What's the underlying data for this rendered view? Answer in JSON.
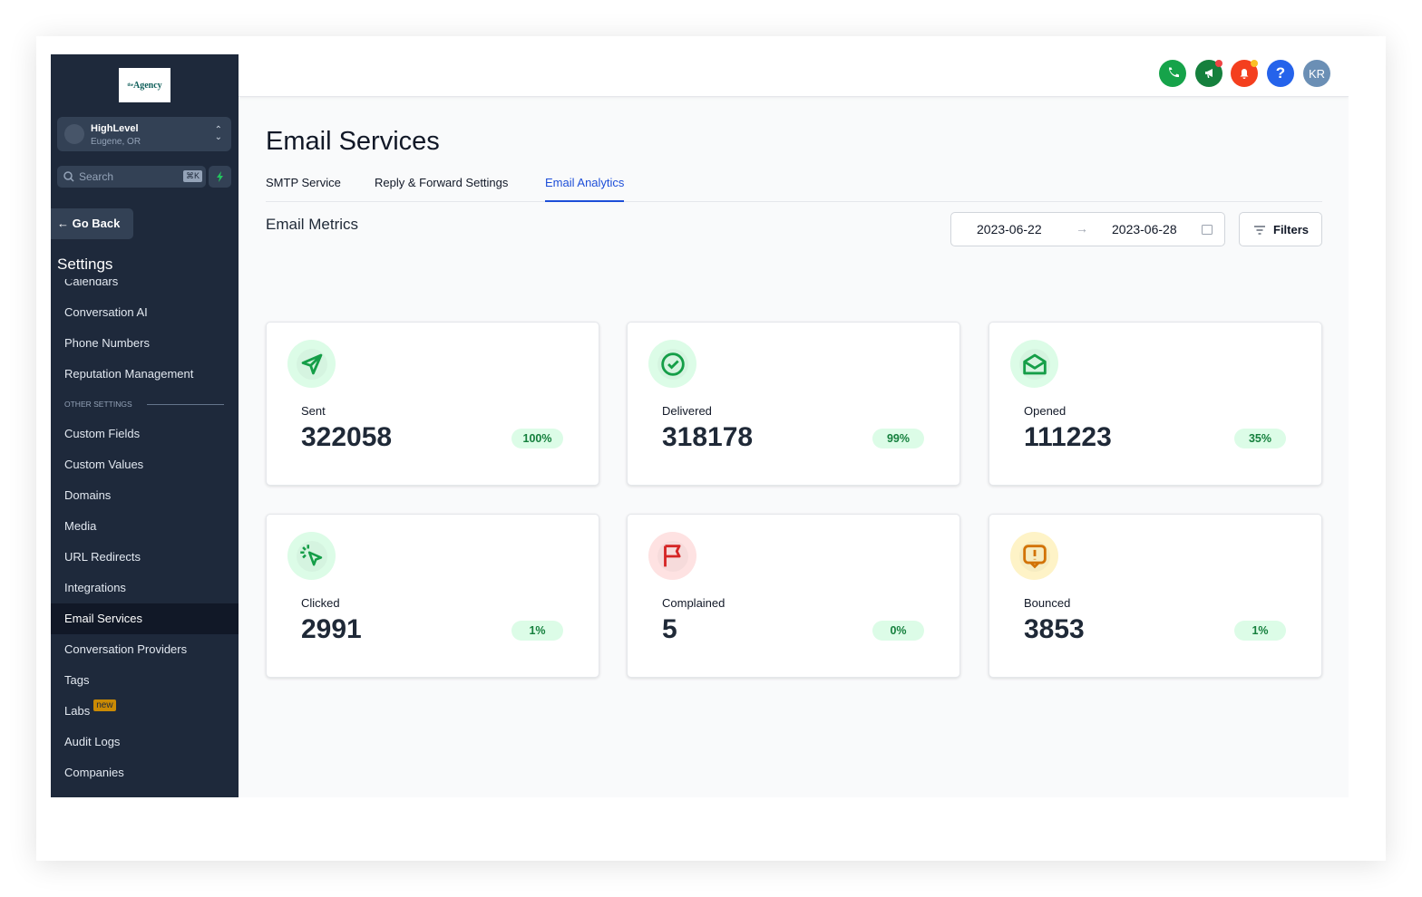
{
  "sidebar": {
    "logo": {
      "prefix": "the",
      "name": "Agency"
    },
    "account": {
      "name": "HighLevel",
      "location": "Eugene, OR"
    },
    "search": {
      "placeholder": "Search",
      "shortcut": "⌘K"
    },
    "go_back": "Go Back",
    "title": "Settings",
    "items": [
      {
        "label": "Calendars"
      },
      {
        "label": "Conversation AI"
      },
      {
        "label": "Phone Numbers"
      },
      {
        "label": "Reputation Management"
      },
      {
        "section": "OTHER SETTINGS"
      },
      {
        "label": "Custom Fields"
      },
      {
        "label": "Custom Values"
      },
      {
        "label": "Domains"
      },
      {
        "label": "Media"
      },
      {
        "label": "URL Redirects"
      },
      {
        "label": "Integrations"
      },
      {
        "label": "Email Services",
        "active": true
      },
      {
        "label": "Conversation Providers"
      },
      {
        "label": "Tags"
      },
      {
        "label": "Labs",
        "badge": "new"
      },
      {
        "label": "Audit Logs"
      },
      {
        "label": "Companies"
      }
    ]
  },
  "header": {
    "help": "?",
    "avatar": "KR"
  },
  "page": {
    "title": "Email Services",
    "tabs": [
      "SMTP Service",
      "Reply & Forward Settings",
      "Email Analytics"
    ],
    "active_tab": 2,
    "section_title": "Email Metrics",
    "date_range": {
      "start": "2023-06-22",
      "end": "2023-06-28"
    },
    "filters": "Filters",
    "metrics": [
      {
        "label": "Sent",
        "value": 322058,
        "percent": "100%"
      },
      {
        "label": "Delivered",
        "value": 318178,
        "percent": "99%"
      },
      {
        "label": "Opened",
        "value": 111223,
        "percent": "35%"
      },
      {
        "label": "Clicked",
        "value": 2991,
        "percent": "1%"
      },
      {
        "label": "Complained",
        "value": 5,
        "percent": "0%"
      },
      {
        "label": "Bounced",
        "value": 3853,
        "percent": "1%"
      }
    ]
  }
}
